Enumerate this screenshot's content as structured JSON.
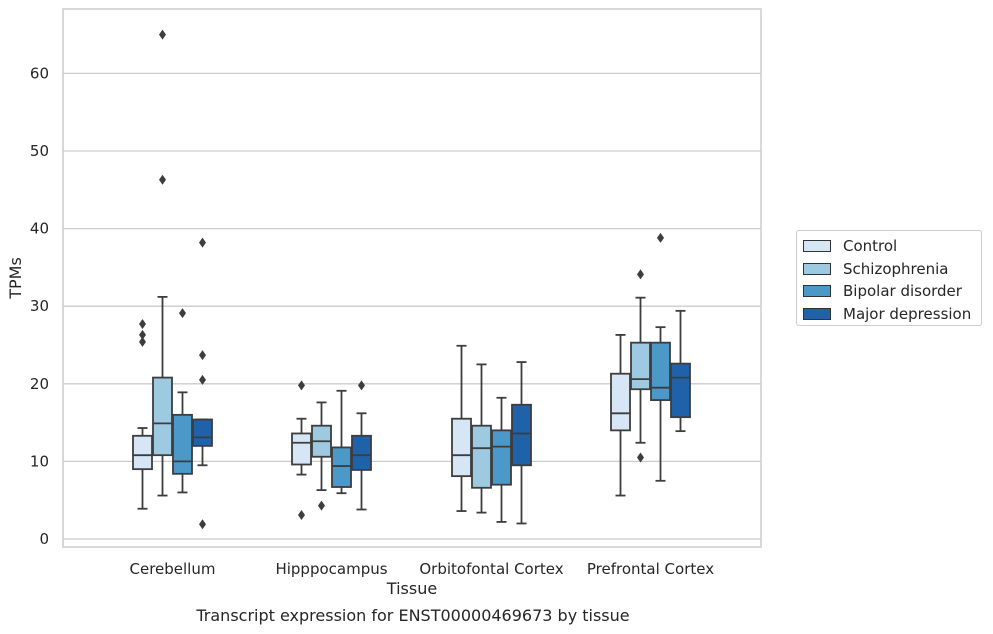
{
  "chart_data": {
    "type": "box",
    "title": "Transcript expression for ENST00000469673 by tissue",
    "xlabel": "Tissue",
    "ylabel": "TPMs",
    "ylim": [
      -1,
      68
    ],
    "yticks": [
      0,
      10,
      20,
      30,
      40,
      50,
      60
    ],
    "grid": true,
    "legend_placement": "right",
    "categories": [
      "Cerebellum",
      "Hipppocampus",
      "Orbitofontal Cortex",
      "Prefrontal Cortex"
    ],
    "series": [
      {
        "name": "Control",
        "color": "#d6e6f4",
        "boxes": [
          {
            "whislo": 3.9,
            "q1": 9.0,
            "med": 10.8,
            "q3": 13.3,
            "whishi": 14.3,
            "fliers": [
              25.4,
              26.3,
              27.7
            ]
          },
          {
            "whislo": 8.3,
            "q1": 9.6,
            "med": 12.4,
            "q3": 13.6,
            "whishi": 15.5,
            "fliers": [
              3.1,
              19.8
            ]
          },
          {
            "whislo": 3.6,
            "q1": 8.1,
            "med": 10.8,
            "q3": 15.5,
            "whishi": 24.9,
            "fliers": []
          },
          {
            "whislo": 5.6,
            "q1": 14.0,
            "med": 16.2,
            "q3": 21.3,
            "whishi": 26.3,
            "fliers": []
          }
        ]
      },
      {
        "name": "Schizophrenia",
        "color": "#9ecae1",
        "boxes": [
          {
            "whislo": 5.6,
            "q1": 10.8,
            "med": 14.9,
            "q3": 20.8,
            "whishi": 31.2,
            "fliers": [
              46.3,
              65.0
            ]
          },
          {
            "whislo": 6.3,
            "q1": 10.6,
            "med": 12.6,
            "q3": 14.6,
            "whishi": 17.6,
            "fliers": [
              4.3
            ]
          },
          {
            "whislo": 3.4,
            "q1": 6.6,
            "med": 11.7,
            "q3": 14.6,
            "whishi": 22.5,
            "fliers": []
          },
          {
            "whislo": 12.4,
            "q1": 19.3,
            "med": 20.6,
            "q3": 25.3,
            "whishi": 31.1,
            "fliers": [
              10.5,
              34.1
            ]
          }
        ]
      },
      {
        "name": "Bipolar disorder",
        "color": "#4b98c9",
        "boxes": [
          {
            "whislo": 6.0,
            "q1": 8.4,
            "med": 10.0,
            "q3": 16.0,
            "whishi": 18.9,
            "fliers": [
              29.1
            ]
          },
          {
            "whislo": 5.9,
            "q1": 6.7,
            "med": 9.4,
            "q3": 11.8,
            "whishi": 19.1,
            "fliers": []
          },
          {
            "whislo": 2.2,
            "q1": 7.0,
            "med": 11.9,
            "q3": 14.0,
            "whishi": 18.2,
            "fliers": []
          },
          {
            "whislo": 7.5,
            "q1": 17.9,
            "med": 19.5,
            "q3": 25.3,
            "whishi": 27.3,
            "fliers": [
              38.8
            ]
          }
        ]
      },
      {
        "name": "Major depression",
        "color": "#2062a9",
        "boxes": [
          {
            "whislo": 9.5,
            "q1": 12.0,
            "med": 13.1,
            "q3": 15.4,
            "whishi": 15.4,
            "fliers": [
              1.9,
              20.5,
              23.7,
              38.2
            ]
          },
          {
            "whislo": 3.8,
            "q1": 8.9,
            "med": 10.8,
            "q3": 13.3,
            "whishi": 16.2,
            "fliers": [
              19.8
            ]
          },
          {
            "whislo": 2.0,
            "q1": 9.5,
            "med": 13.6,
            "q3": 17.3,
            "whishi": 22.8,
            "fliers": []
          },
          {
            "whislo": 13.9,
            "q1": 15.7,
            "med": 20.8,
            "q3": 22.6,
            "whishi": 29.4,
            "fliers": []
          }
        ]
      }
    ]
  }
}
